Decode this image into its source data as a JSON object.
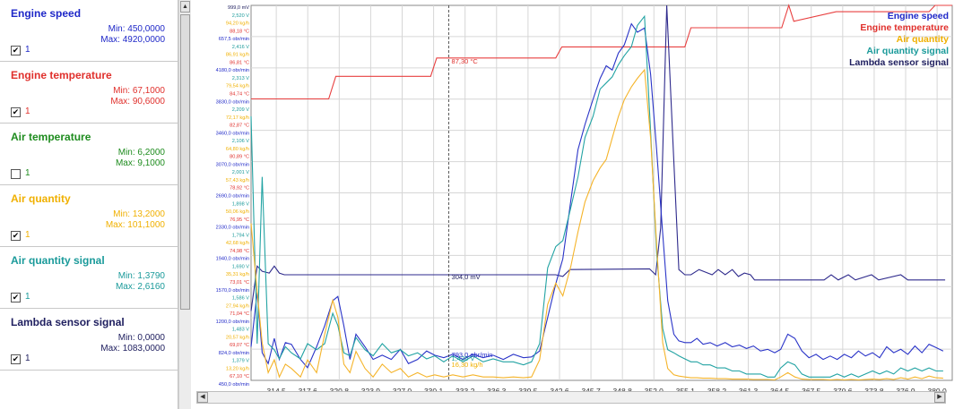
{
  "signals": [
    {
      "name": "Engine speed",
      "min": "Min: 450,0000",
      "max": "Max: 4920,0000",
      "checked": true,
      "count": "1",
      "color": "#1f28c8"
    },
    {
      "name": "Engine temperature",
      "min": "Min: 67,1000",
      "max": "Max: 90,6000",
      "checked": true,
      "count": "1",
      "color": "#e0302c"
    },
    {
      "name": "Air temperature",
      "min": "Min: 6,2000",
      "max": "Max: 9,1000",
      "checked": false,
      "count": "1",
      "color": "#1e8c1e"
    },
    {
      "name": "Air quantity",
      "min": "Min: 13,2000",
      "max": "Max: 101,1000",
      "checked": true,
      "count": "1",
      "color": "#f0b000"
    },
    {
      "name": "Air quantity signal",
      "min": "Min: 1,3790",
      "max": "Max: 2,6160",
      "checked": true,
      "count": "1",
      "color": "#1a9a9a"
    },
    {
      "name": "Lambda sensor signal",
      "min": "Min: 0,0000",
      "max": "Max: 1083,0000",
      "checked": true,
      "count": "1",
      "color": "#202060"
    }
  ],
  "chart_data": {
    "type": "line",
    "xlim": [
      312.0,
      381.5
    ],
    "x_ticks": [
      "314,5",
      "317,6",
      "320,8",
      "323,9",
      "327,0",
      "330,1",
      "333,2",
      "336,3",
      "339,5",
      "342,6",
      "345,7",
      "348,8",
      "352,0",
      "355,1",
      "358,2",
      "361,3",
      "364,5",
      "367,5",
      "370,6",
      "373,8",
      "376,9",
      "380,0"
    ],
    "legend": [
      "Engine speed",
      "Engine temperature",
      "Air quantity",
      "Air quantity signal",
      "Lambda sensor signal"
    ],
    "cursor": {
      "x": 331.6,
      "labels": [
        "87,30 °C",
        "304,0 mV",
        "793,0 obr/min",
        "1,420 V",
        "16,30 kg/h"
      ]
    },
    "series": [
      {
        "name": "Engine temperature",
        "color": "#e84040",
        "ylim": [
          67.1,
          90.6
        ],
        "x": [
          312.0,
          319.7,
          320.4,
          329.8,
          330.4,
          342.2,
          342.8,
          355.0,
          355.6,
          364.6,
          365.3,
          365.8,
          370.0,
          379.2,
          379.8,
          381.5
        ],
        "y": [
          84.74,
          84.74,
          86.15,
          86.15,
          87.3,
          87.3,
          88.0,
          88.0,
          89.2,
          89.2,
          90.6,
          89.6,
          90.2,
          90.2,
          90.6,
          90.6
        ]
      },
      {
        "name": "Lambda sensor signal",
        "color": "#2e2a8c",
        "ylim": [
          0,
          1083
        ],
        "x": [
          312.0,
          312.6,
          313.1,
          313.8,
          314.3,
          314.8,
          315.3,
          342.2,
          342.9,
          343.6,
          351.5,
          352.1,
          352.6,
          353.2,
          353.8,
          354.4,
          355.0,
          355.6,
          356.4,
          357.7,
          358.3,
          359.0,
          359.7,
          360.3,
          360.9,
          361.5,
          361.9,
          368.8,
          369.5,
          370.2,
          371.2,
          371.9,
          373.5,
          374.2,
          376.4,
          377.1,
          377.6,
          380.8
        ],
        "y": [
          200,
          330,
          315,
          310,
          330,
          310,
          305,
          305,
          300,
          320,
          322,
          305,
          440,
          1083,
          700,
          320,
          305,
          305,
          320,
          305,
          320,
          305,
          320,
          300,
          310,
          305,
          290,
          290,
          305,
          290,
          305,
          290,
          305,
          290,
          305,
          290,
          290,
          290
        ]
      },
      {
        "name": "Engine speed",
        "color": "#2a34c8",
        "ylim": [
          450,
          4920
        ],
        "x": [
          312.0,
          312.6,
          313.1,
          313.7,
          314.3,
          314.8,
          315.4,
          316.0,
          316.9,
          317.6,
          318.5,
          319.3,
          320.1,
          320.6,
          321.2,
          321.8,
          322.4,
          323.3,
          324.1,
          325.0,
          325.9,
          326.8,
          327.6,
          328.5,
          329.4,
          330.2,
          331.1,
          332.0,
          333.0,
          334.0,
          335.0,
          336.0,
          337.0,
          338.0,
          339.0,
          339.8,
          340.6,
          341.4,
          342.2,
          342.9,
          343.7,
          344.4,
          345.1,
          345.9,
          346.6,
          347.2,
          347.8,
          348.4,
          349.0,
          349.7,
          350.3,
          351.0,
          351.6,
          352.2,
          352.8,
          353.3,
          353.9,
          354.4,
          355.0,
          355.6,
          356.2,
          356.8,
          357.5,
          358.2,
          359.0,
          359.7,
          360.4,
          361.1,
          361.8,
          362.5,
          363.2,
          363.9,
          364.5,
          365.2,
          365.9,
          366.6,
          367.3,
          368.0,
          368.7,
          369.4,
          370.1,
          370.8,
          371.5,
          372.2,
          372.9,
          373.6,
          374.3,
          375.0,
          375.7,
          376.4,
          377.1,
          377.8,
          378.5,
          379.2,
          379.9,
          380.6
        ],
        "y": [
          850,
          1500,
          780,
          650,
          950,
          700,
          900,
          880,
          700,
          600,
          850,
          1100,
          1400,
          1450,
          1100,
          700,
          1000,
          850,
          700,
          750,
          700,
          820,
          650,
          700,
          800,
          750,
          720,
          760,
          700,
          760,
          720,
          750,
          700,
          760,
          720,
          730,
          800,
          1200,
          1600,
          1900,
          2600,
          3200,
          3500,
          3800,
          4050,
          4200,
          4150,
          4350,
          4450,
          4700,
          4600,
          4650,
          4100,
          3200,
          2200,
          1400,
          1000,
          920,
          900,
          900,
          950,
          880,
          900,
          860,
          900,
          850,
          870,
          830,
          860,
          800,
          820,
          780,
          820,
          1000,
          950,
          800,
          720,
          760,
          700,
          740,
          700,
          760,
          720,
          800,
          740,
          780,
          720,
          850,
          780,
          820,
          760,
          860,
          780,
          880,
          840,
          800
        ]
      },
      {
        "name": "Air quantity signal",
        "color": "#22a3a3",
        "ylim": [
          1.379,
          2.616
        ],
        "x": [
          312.0,
          312.6,
          313.1,
          313.7,
          314.3,
          314.8,
          315.4,
          316.0,
          316.9,
          317.6,
          318.5,
          319.3,
          320.1,
          320.6,
          321.2,
          321.8,
          322.4,
          323.3,
          324.1,
          325.0,
          325.9,
          326.8,
          327.6,
          328.5,
          329.4,
          330.2,
          331.1,
          332.0,
          333.0,
          334.0,
          335.0,
          336.0,
          337.0,
          338.0,
          339.0,
          339.8,
          340.6,
          341.4,
          342.2,
          342.9,
          343.7,
          344.4,
          345.1,
          345.9,
          346.6,
          347.2,
          347.8,
          348.4,
          349.0,
          349.7,
          350.3,
          351.0,
          351.6,
          352.2,
          352.8,
          353.3,
          353.9,
          354.4,
          355.0,
          355.6,
          356.2,
          356.8,
          357.5,
          358.2,
          359.0,
          359.7,
          360.4,
          361.1,
          361.8,
          362.5,
          363.2,
          363.9,
          364.5,
          365.2,
          365.9,
          366.6,
          367.3,
          368.0,
          368.7,
          369.4,
          370.1,
          370.8,
          371.5,
          372.2,
          372.9,
          373.6,
          374.3,
          375.0,
          375.7,
          376.4,
          377.1,
          377.8,
          378.5,
          379.2,
          379.9,
          380.6
        ],
        "y": [
          2.25,
          1.5,
          2.05,
          1.5,
          1.48,
          1.45,
          1.49,
          1.47,
          1.45,
          1.5,
          1.48,
          1.5,
          1.6,
          1.56,
          1.47,
          1.46,
          1.52,
          1.48,
          1.46,
          1.5,
          1.47,
          1.48,
          1.46,
          1.47,
          1.45,
          1.46,
          1.44,
          1.46,
          1.44,
          1.46,
          1.44,
          1.45,
          1.44,
          1.44,
          1.43,
          1.44,
          1.5,
          1.75,
          1.82,
          1.84,
          1.95,
          2.05,
          2.18,
          2.25,
          2.34,
          2.36,
          2.38,
          2.42,
          2.45,
          2.48,
          2.55,
          2.58,
          2.2,
          1.8,
          1.55,
          1.48,
          1.47,
          1.46,
          1.45,
          1.44,
          1.44,
          1.43,
          1.43,
          1.42,
          1.42,
          1.41,
          1.41,
          1.4,
          1.4,
          1.4,
          1.39,
          1.39,
          1.42,
          1.44,
          1.43,
          1.4,
          1.39,
          1.39,
          1.39,
          1.39,
          1.4,
          1.39,
          1.4,
          1.39,
          1.4,
          1.41,
          1.4,
          1.41,
          1.4,
          1.42,
          1.41,
          1.42,
          1.41,
          1.42,
          1.41,
          1.41
        ]
      },
      {
        "name": "Air quantity",
        "color": "#f5b42a",
        "ylim": [
          13.2,
          101.1
        ],
        "x": [
          312.0,
          312.6,
          313.1,
          313.7,
          314.3,
          314.8,
          315.4,
          316.0,
          316.9,
          317.6,
          318.5,
          319.3,
          320.1,
          320.6,
          321.2,
          321.8,
          322.4,
          323.3,
          324.1,
          325.0,
          325.9,
          326.8,
          327.6,
          328.5,
          329.4,
          330.2,
          331.1,
          332.0,
          333.0,
          334.0,
          335.0,
          336.0,
          337.0,
          338.0,
          339.0,
          339.8,
          340.6,
          341.4,
          342.2,
          342.9,
          343.7,
          344.4,
          345.1,
          345.9,
          346.6,
          347.2,
          347.8,
          348.4,
          349.0,
          349.7,
          350.3,
          351.0,
          351.6,
          352.2,
          352.8,
          353.3,
          353.9,
          354.4,
          355.0,
          355.6,
          356.2,
          356.8,
          357.5,
          358.2,
          359.0,
          359.7,
          360.4,
          361.1,
          361.8,
          362.5,
          363.2,
          363.9,
          364.5,
          365.2,
          365.9,
          366.6,
          367.3,
          368.0,
          368.7,
          369.4,
          370.1,
          370.8,
          371.5,
          372.2,
          372.9,
          373.6,
          374.3,
          375.0,
          375.7,
          376.4,
          377.1,
          377.8,
          378.5,
          379.2,
          379.9,
          380.6
        ],
        "y": [
          50,
          34,
          22,
          15,
          18,
          14,
          17,
          16,
          14,
          18,
          15,
          24,
          32,
          28,
          17,
          15,
          20,
          16,
          14,
          17,
          15,
          16,
          14,
          15,
          14,
          14.5,
          14,
          14.5,
          14,
          14.5,
          14,
          14,
          13.8,
          14,
          13.8,
          14,
          18,
          31,
          36,
          33,
          40,
          48,
          55,
          60,
          63,
          65,
          70,
          75,
          79,
          82,
          84,
          86,
          70,
          45,
          22,
          16,
          14.5,
          14.2,
          14,
          13.8,
          13.8,
          13.7,
          13.7,
          13.6,
          13.6,
          13.5,
          13.5,
          13.5,
          13.4,
          13.4,
          13.4,
          13.3,
          14,
          15,
          14,
          13.5,
          13.4,
          13.4,
          13.4,
          13.3,
          13.4,
          13.3,
          13.4,
          13.3,
          13.4,
          13.5,
          13.4,
          13.6,
          13.4,
          13.8,
          13.5,
          14,
          13.6,
          14.2,
          13.8,
          13.7
        ]
      }
    ],
    "axis_labels": [
      {
        "label": "999,0 mV",
        "color": "#202060"
      },
      {
        "label": "2,520 V",
        "color": "#1a9a9a"
      },
      {
        "label": "94,20 kg/h",
        "color": "#f0b000"
      },
      {
        "label": "88,18 °C",
        "color": "#e0302c"
      },
      {
        "label": "657,5 obr/min",
        "color": "#1f28c8"
      },
      {
        "label": "2,416 V",
        "color": "#1a9a9a"
      },
      {
        "label": "86,91 kg/h",
        "color": "#f0b000"
      },
      {
        "label": "86,81 °C",
        "color": "#e0302c"
      },
      {
        "label": "4180,0 obr/min",
        "color": "#1f28c8"
      },
      {
        "label": "2,313 V",
        "color": "#1a9a9a"
      },
      {
        "label": "79,54 kg/h",
        "color": "#f0b000"
      },
      {
        "label": "84,74 °C",
        "color": "#e0302c"
      },
      {
        "label": "3830,0 obr/min",
        "color": "#1f28c8"
      },
      {
        "label": "2,209 V",
        "color": "#1a9a9a"
      },
      {
        "label": "72,17 kg/h",
        "color": "#f0b000"
      },
      {
        "label": "82,87 °C",
        "color": "#e0302c"
      },
      {
        "label": "3460,0 obr/min",
        "color": "#1f28c8"
      },
      {
        "label": "2,106 V",
        "color": "#1a9a9a"
      },
      {
        "label": "64,80 kg/h",
        "color": "#f0b000"
      },
      {
        "label": "80,89 °C",
        "color": "#e0302c"
      },
      {
        "label": "3070,0 obr/min",
        "color": "#1f28c8"
      },
      {
        "label": "2,001 V",
        "color": "#1a9a9a"
      },
      {
        "label": "57,43 kg/h",
        "color": "#f0b000"
      },
      {
        "label": "78,92 °C",
        "color": "#e0302c"
      },
      {
        "label": "2690,0 obr/min",
        "color": "#1f28c8"
      },
      {
        "label": "1,898 V",
        "color": "#1a9a9a"
      },
      {
        "label": "50,06 kg/h",
        "color": "#f0b000"
      },
      {
        "label": "76,95 °C",
        "color": "#e0302c"
      },
      {
        "label": "2330,0 obr/min",
        "color": "#1f28c8"
      },
      {
        "label": "1,794 V",
        "color": "#1a9a9a"
      },
      {
        "label": "42,68 kg/h",
        "color": "#f0b000"
      },
      {
        "label": "74,98 °C",
        "color": "#e0302c"
      },
      {
        "label": "1940,0 obr/min",
        "color": "#1f28c8"
      },
      {
        "label": "1,690 V",
        "color": "#1a9a9a"
      },
      {
        "label": "35,31 kg/h",
        "color": "#f0b000"
      },
      {
        "label": "73,01 °C",
        "color": "#e0302c"
      },
      {
        "label": "1570,0 obr/min",
        "color": "#1f28c8"
      },
      {
        "label": "1,586 V",
        "color": "#1a9a9a"
      },
      {
        "label": "27,94 kg/h",
        "color": "#f0b000"
      },
      {
        "label": "71,04 °C",
        "color": "#e0302c"
      },
      {
        "label": "1200,0 obr/min",
        "color": "#1f28c8"
      },
      {
        "label": "1,483 V",
        "color": "#1a9a9a"
      },
      {
        "label": "20,57 kg/h",
        "color": "#f0b000"
      },
      {
        "label": "69,07 °C",
        "color": "#e0302c"
      },
      {
        "label": "824,0 obr/min",
        "color": "#1f28c8"
      },
      {
        "label": "1,379 V",
        "color": "#1a9a9a"
      },
      {
        "label": "13,20 kg/h",
        "color": "#f0b000"
      },
      {
        "label": "67,10 °C",
        "color": "#e0302c"
      },
      {
        "label": "450,0 obr/min",
        "color": "#1f28c8"
      }
    ]
  }
}
